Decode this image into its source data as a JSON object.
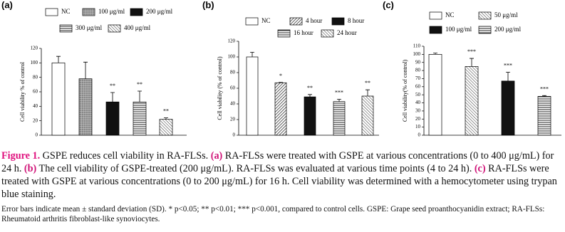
{
  "chart_data": [
    {
      "type": "bar",
      "panel": "(a)",
      "y_label": "Cell viability % of control",
      "ylim": [
        0,
        120
      ],
      "yticks": [
        0,
        20,
        40,
        60,
        80,
        100,
        120
      ],
      "series": [
        {
          "name": "NC",
          "pattern": "white",
          "values": [
            100
          ],
          "errors": [
            9
          ]
        },
        {
          "name": "100 μg/ml",
          "pattern": "grid",
          "values": [
            78
          ],
          "errors": [
            23
          ]
        },
        {
          "name": "200 μg/ml",
          "pattern": "black",
          "values": [
            46
          ],
          "errors": [
            13
          ],
          "significance": "**"
        },
        {
          "name": "300 μg/ml",
          "pattern": "horizontal",
          "values": [
            46
          ],
          "errors": [
            15
          ],
          "significance": "**"
        },
        {
          "name": "400 μg/ml",
          "pattern": "diagonal",
          "values": [
            22
          ],
          "errors": [
            2
          ],
          "significance": "**"
        }
      ]
    },
    {
      "type": "bar",
      "panel": "(b)",
      "y_label": "Cell viability (% of control)",
      "ylim": [
        0,
        120
      ],
      "yticks": [
        0,
        20,
        40,
        60,
        80,
        100,
        120
      ],
      "series": [
        {
          "name": "NC",
          "pattern": "white",
          "values": [
            100
          ],
          "errors": [
            6
          ]
        },
        {
          "name": "4 hour",
          "pattern": "dense",
          "values": [
            67
          ],
          "errors": [
            0.5
          ],
          "significance": "*"
        },
        {
          "name": "8 hour",
          "pattern": "black",
          "values": [
            49
          ],
          "errors": [
            3
          ],
          "significance": "**"
        },
        {
          "name": "16 hour",
          "pattern": "horizontal",
          "values": [
            43
          ],
          "errors": [
            3
          ],
          "significance": "***"
        },
        {
          "name": "24 hour",
          "pattern": "diagonal",
          "values": [
            50
          ],
          "errors": [
            8
          ],
          "significance": "**"
        }
      ]
    },
    {
      "type": "bar",
      "panel": "(c)",
      "y_label": "Cell viability(% of control)",
      "ylim": [
        0,
        110
      ],
      "yticks": [
        0,
        10,
        20,
        30,
        40,
        50,
        60,
        70,
        80,
        90,
        100,
        110
      ],
      "series": [
        {
          "name": "NC",
          "pattern": "white",
          "values": [
            100
          ],
          "errors": [
            1.5
          ]
        },
        {
          "name": "50 μg/ml",
          "pattern": "diagonal",
          "values": [
            85
          ],
          "errors": [
            10
          ],
          "significance": "***"
        },
        {
          "name": "100 μg/ml",
          "pattern": "black",
          "values": [
            67
          ],
          "errors": [
            11
          ],
          "significance": "***"
        },
        {
          "name": "200 μg/ml",
          "pattern": "horizontal",
          "values": [
            48
          ],
          "errors": [
            1
          ],
          "significance": "***"
        }
      ]
    }
  ],
  "caption": {
    "label": "Figure 1.",
    "segments": [
      {
        "text": " GSPE reduces cell viability in RA-FLSs. "
      },
      {
        "text": "(a)",
        "strong": true
      },
      {
        "text": " RA-FLSs were treated with GSPE at various concentrations (0 to 400 μg/mL) for 24 h. "
      },
      {
        "text": "(b)",
        "strong": true
      },
      {
        "text": " The cell viability of GSPE-treated (200 μg/mL). RA-FLSs was evaluated at various time points (4 to 24 h). "
      },
      {
        "text": "(c)",
        "strong": true
      },
      {
        "text": " RA-FLSs were treated with GSPE at various concentrations (0 to 200 μg/mL) for 16 h. Cell viability was determined with a hemocytometer using trypan blue staining."
      }
    ]
  },
  "notes": "Error bars indicate mean ± standard deviation (SD). * p<0.05; ** p<0.01; *** p<0.001, compared to control cells. GSPE: Grape seed proanthocyanidin extract; RA-FLSs: Rheumatoid arthritis fibroblast-like synoviocytes."
}
